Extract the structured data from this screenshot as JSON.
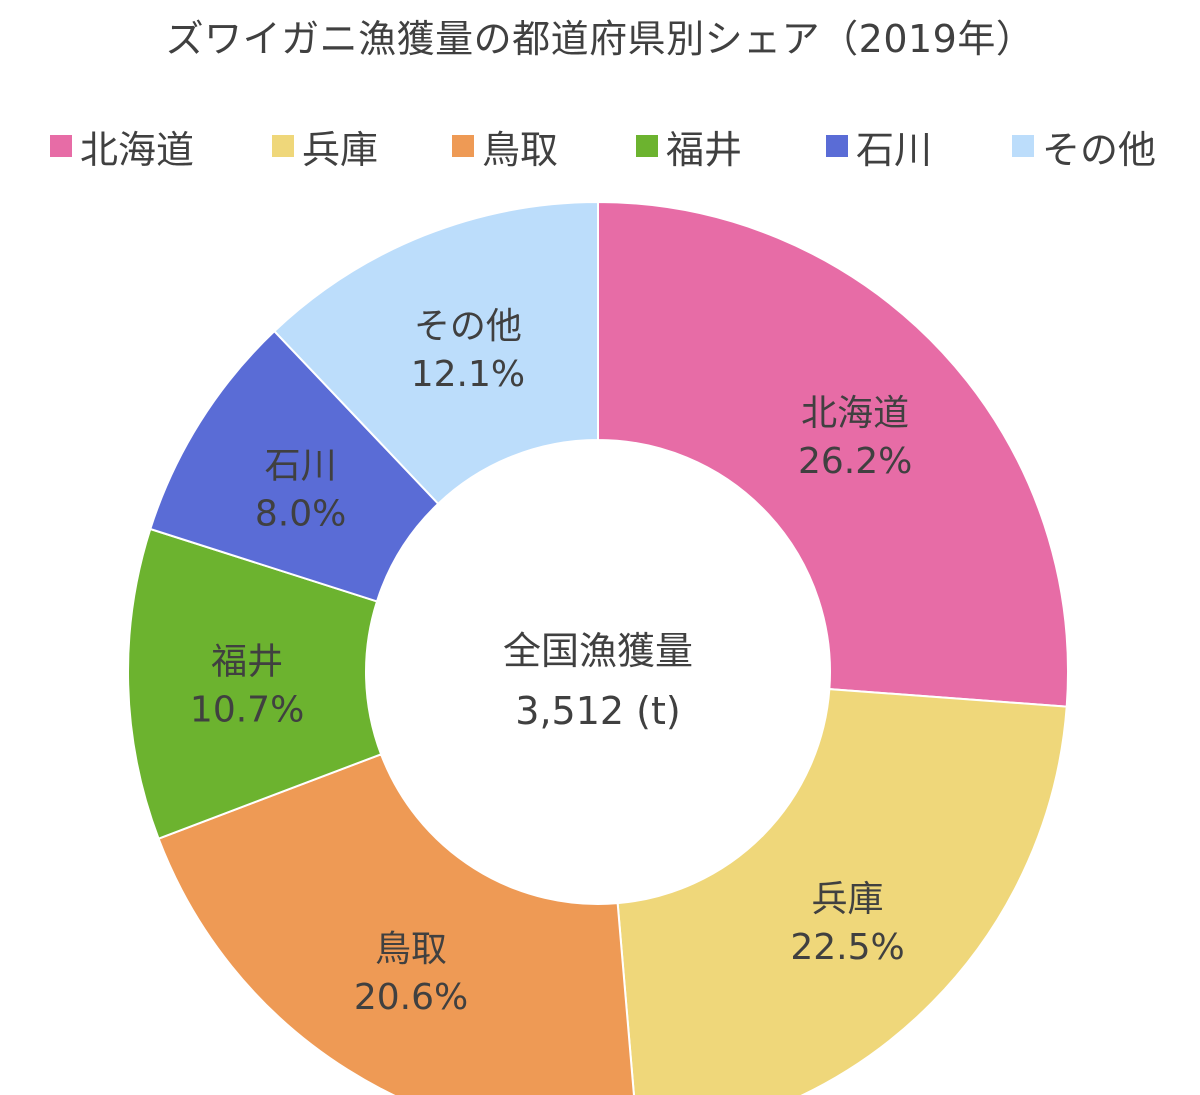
{
  "chart_data": {
    "type": "donut",
    "title": "ズワイガニ漁獲量の都道府県別シェア（2019年）",
    "legend_position": "top",
    "categories": [
      "北海道",
      "兵庫",
      "鳥取",
      "福井",
      "石川",
      "その他"
    ],
    "values": [
      26.2,
      22.5,
      20.6,
      10.7,
      8.0,
      12.1
    ],
    "value_labels": [
      "26.2%",
      "22.5%",
      "20.6%",
      "10.7%",
      "8.0%",
      "12.1%"
    ],
    "colors": [
      "#E76CA6",
      "#EFD77A",
      "#EE9A55",
      "#6CB32F",
      "#5A6CD6",
      "#BCDDFB"
    ],
    "center_label": "全国漁獲量",
    "center_value": "3,512 (t)"
  }
}
